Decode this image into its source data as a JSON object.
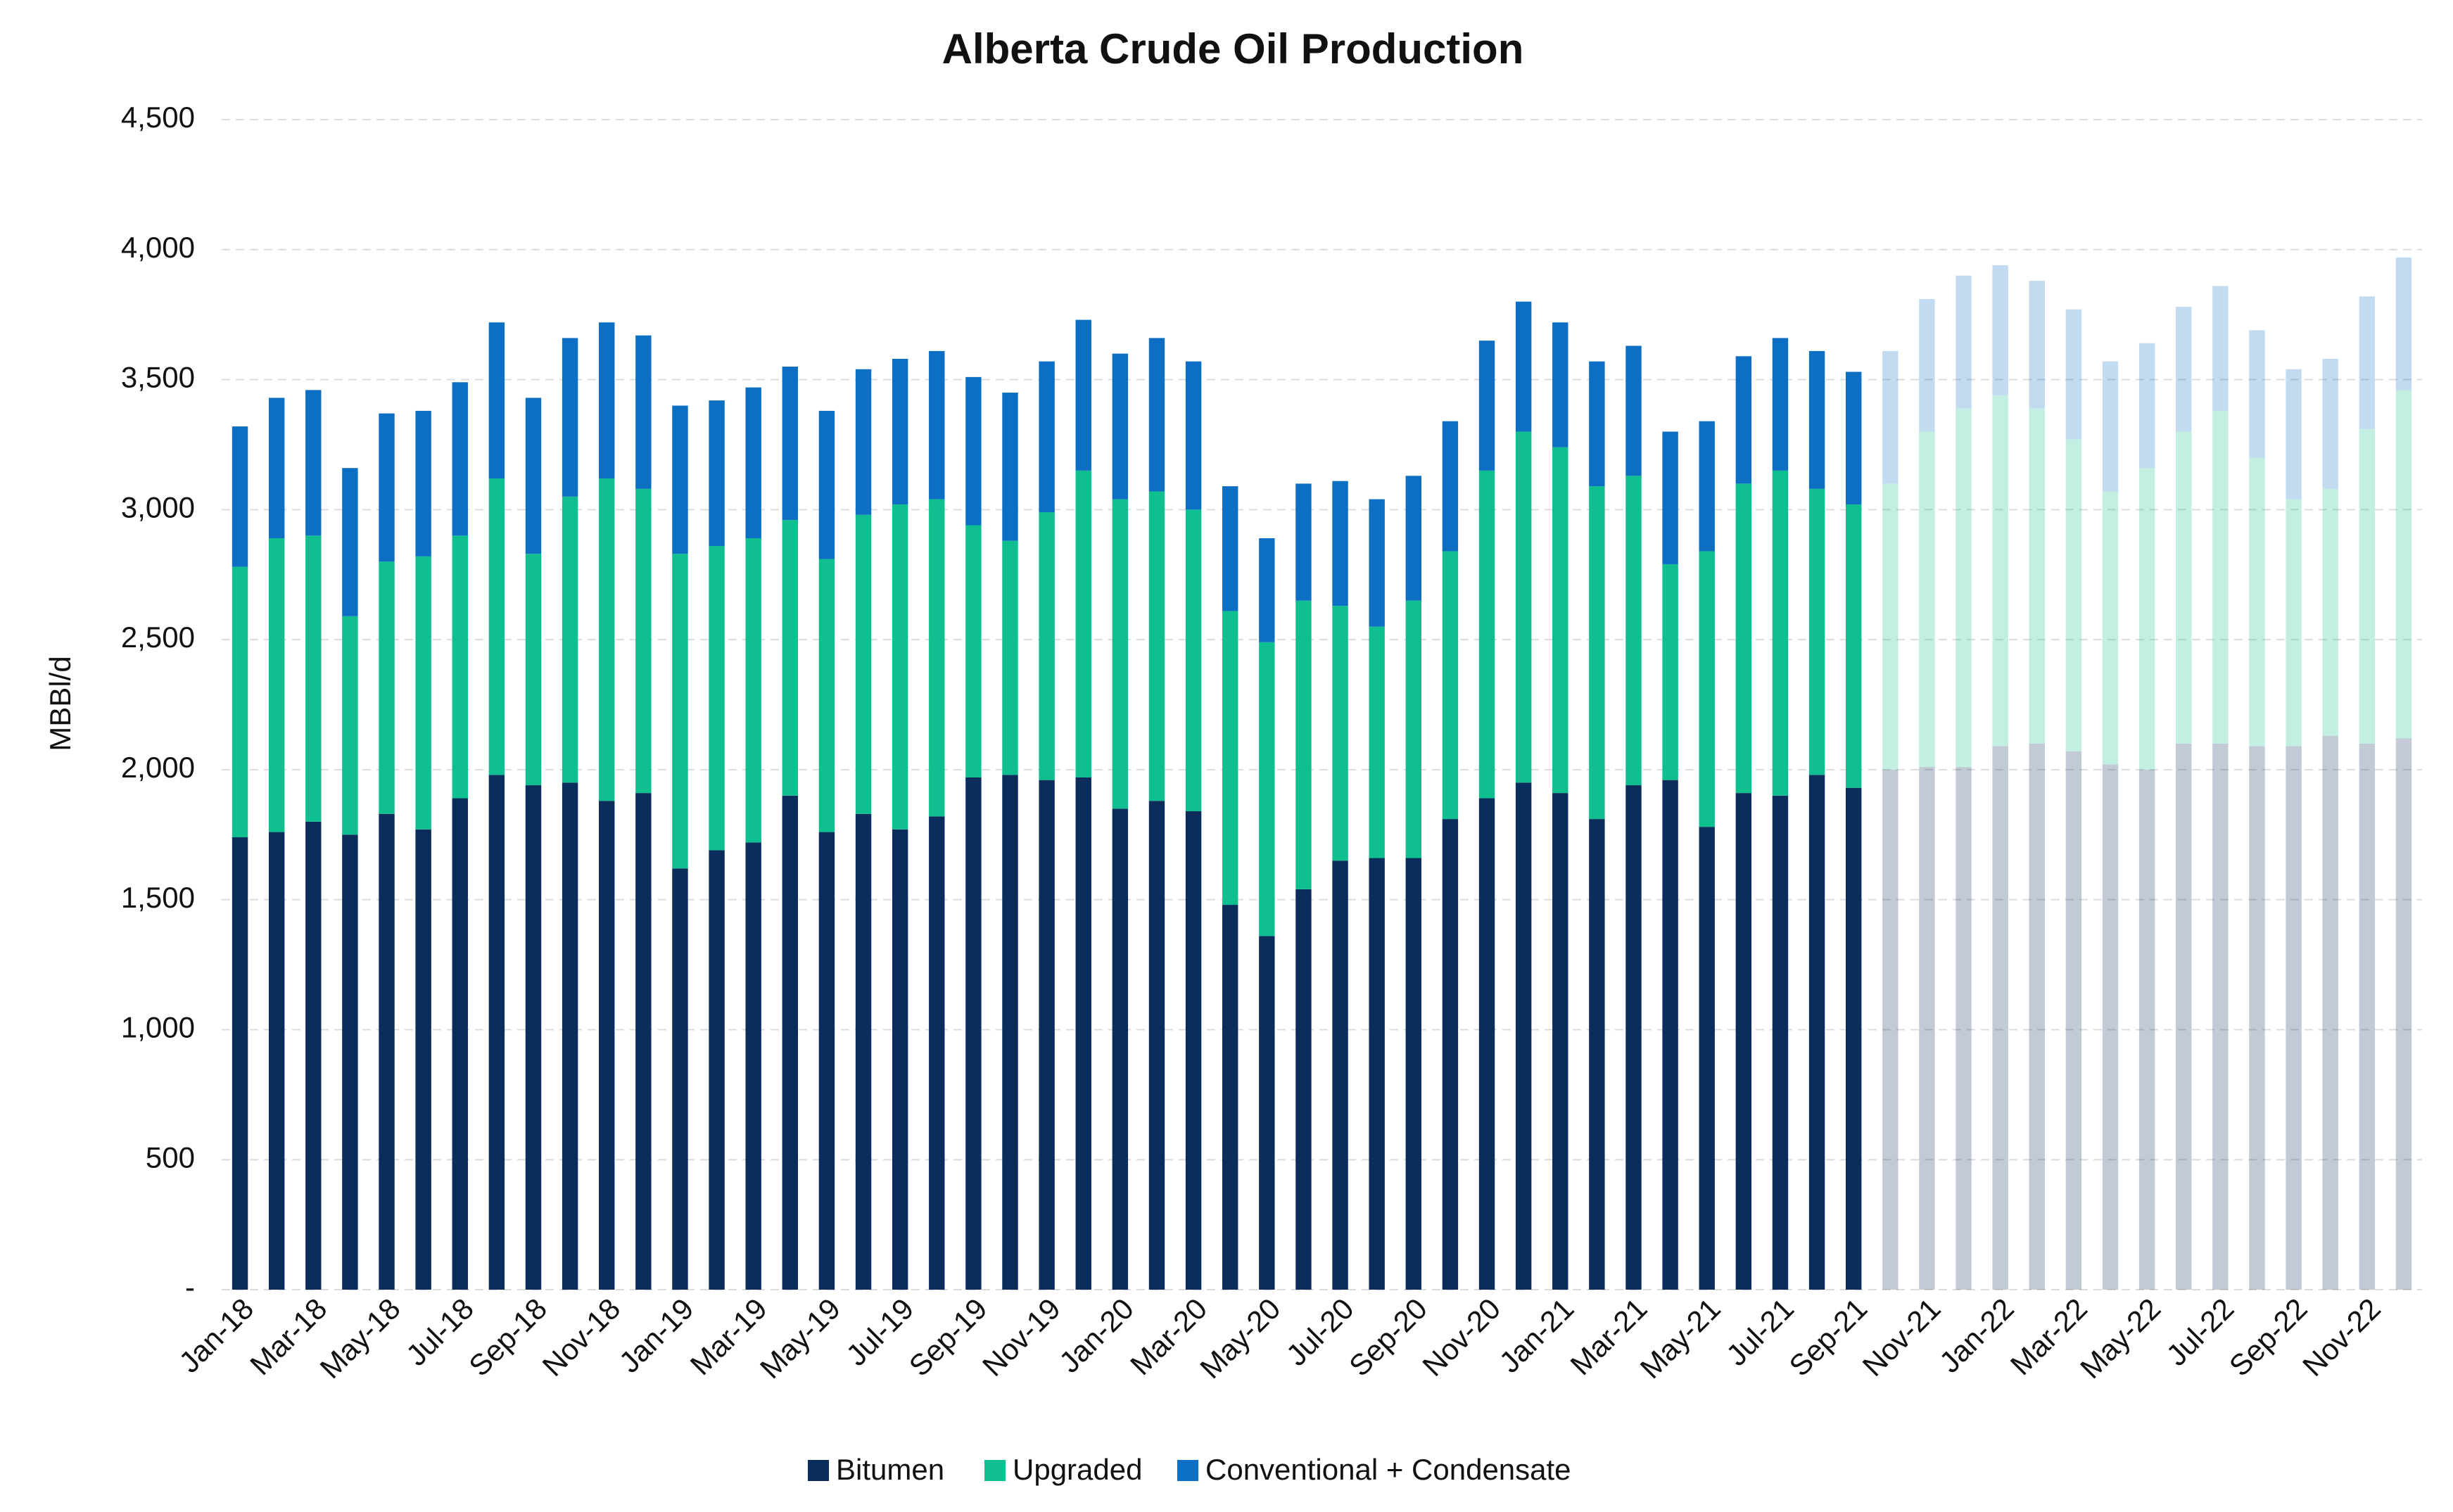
{
  "chart_data": {
    "type": "stacked_bar",
    "title": "Alberta Crude Oil Production",
    "y_label": "MBBl/d",
    "categories": [
      "Jan-18",
      null,
      "Mar-18",
      null,
      "May-18",
      null,
      "Jul-18",
      null,
      "Sep-18",
      null,
      "Nov-18",
      null,
      "Jan-19",
      null,
      "Mar-19",
      null,
      "May-19",
      null,
      "Jul-19",
      null,
      "Sep-19",
      null,
      "Nov-19",
      null,
      "Jan-20",
      null,
      "Mar-20",
      null,
      "May-20",
      null,
      "Jul-20",
      null,
      "Sep-20",
      null,
      "Nov-20",
      null,
      "Jan-21",
      null,
      "Mar-21",
      null,
      "May-21",
      null,
      "Jul-21",
      null,
      "Sep-21",
      null,
      "Nov-21",
      null,
      "Jan-22",
      null,
      "Mar-22",
      null,
      "May-22",
      null,
      "Jul-22",
      null,
      "Sep-22",
      null,
      "Nov-22",
      null
    ],
    "series": [
      {
        "name": "Bitumen",
        "color": "#0b2d5b",
        "values": [
          1740,
          1760,
          1800,
          1750,
          1830,
          1770,
          1890,
          1980,
          1940,
          1950,
          1880,
          1910,
          1620,
          1690,
          1720,
          1900,
          1760,
          1830,
          1770,
          1820,
          1970,
          1980,
          1960,
          1970,
          1850,
          1880,
          1840,
          1480,
          1360,
          1540,
          1650,
          1660,
          1660,
          1810,
          1890,
          1950,
          1910,
          1810,
          1940,
          1960,
          1780,
          1910,
          1900,
          1980,
          1930,
          2000,
          2010,
          2010,
          2090,
          2100,
          2070,
          2020,
          2000,
          2100,
          2100,
          2090,
          2090,
          2130,
          2100,
          2120
        ]
      },
      {
        "name": "Upgraded",
        "color": "#0fbf8f",
        "values": [
          1040,
          1130,
          1100,
          840,
          970,
          1050,
          1010,
          1140,
          890,
          1100,
          1240,
          1170,
          1210,
          1170,
          1170,
          1060,
          1050,
          1150,
          1250,
          1220,
          970,
          900,
          1030,
          1180,
          1190,
          1190,
          1160,
          1130,
          1130,
          1110,
          980,
          890,
          990,
          1030,
          1260,
          1350,
          1330,
          1280,
          1190,
          830,
          1060,
          1190,
          1250,
          1100,
          1090,
          1100,
          1290,
          1380,
          1350,
          1290,
          1200,
          1050,
          1160,
          1200,
          1280,
          1110,
          950,
          950,
          1210,
          1340
        ]
      },
      {
        "name": "Conventional + Condensate",
        "color": "#0d6fc4",
        "values": [
          540,
          540,
          560,
          570,
          570,
          560,
          590,
          600,
          600,
          610,
          600,
          590,
          570,
          560,
          580,
          590,
          570,
          560,
          560,
          570,
          570,
          570,
          580,
          580,
          560,
          590,
          570,
          480,
          400,
          450,
          480,
          490,
          480,
          500,
          500,
          500,
          480,
          480,
          500,
          510,
          500,
          490,
          510,
          530,
          510,
          510,
          510,
          510,
          500,
          490,
          500,
          500,
          480,
          480,
          480,
          490,
          500,
          500,
          510,
          510
        ]
      }
    ],
    "opacity": [
      1,
      1,
      1,
      1,
      1,
      1,
      1,
      1,
      1,
      1,
      1,
      1,
      1,
      1,
      1,
      1,
      1,
      1,
      1,
      1,
      1,
      1,
      1,
      1,
      1,
      1,
      1,
      1,
      1,
      1,
      1,
      1,
      1,
      1,
      1,
      1,
      1,
      1,
      1,
      1,
      1,
      1,
      1,
      1,
      1,
      0.25,
      0.25,
      0.25,
      0.25,
      0.25,
      0.25,
      0.25,
      0.25,
      0.25,
      0.25,
      0.25,
      0.25,
      0.25,
      0.25,
      0.25
    ],
    "ylim": [
      0,
      4500
    ],
    "yticks": [
      {
        "value": 0,
        "label": "-"
      },
      500,
      {
        "value": 1000,
        "label": "1,000"
      },
      {
        "value": 1500,
        "label": "1,500"
      },
      {
        "value": 2000,
        "label": "2,000"
      },
      {
        "value": 2500,
        "label": "2,500"
      },
      {
        "value": 3000,
        "label": "3,000"
      },
      {
        "value": 3500,
        "label": "3,500"
      },
      {
        "value": 4000,
        "label": "4,000"
      },
      {
        "value": 4500,
        "label": "4,500"
      }
    ],
    "grid": true,
    "legend": "bottom"
  }
}
